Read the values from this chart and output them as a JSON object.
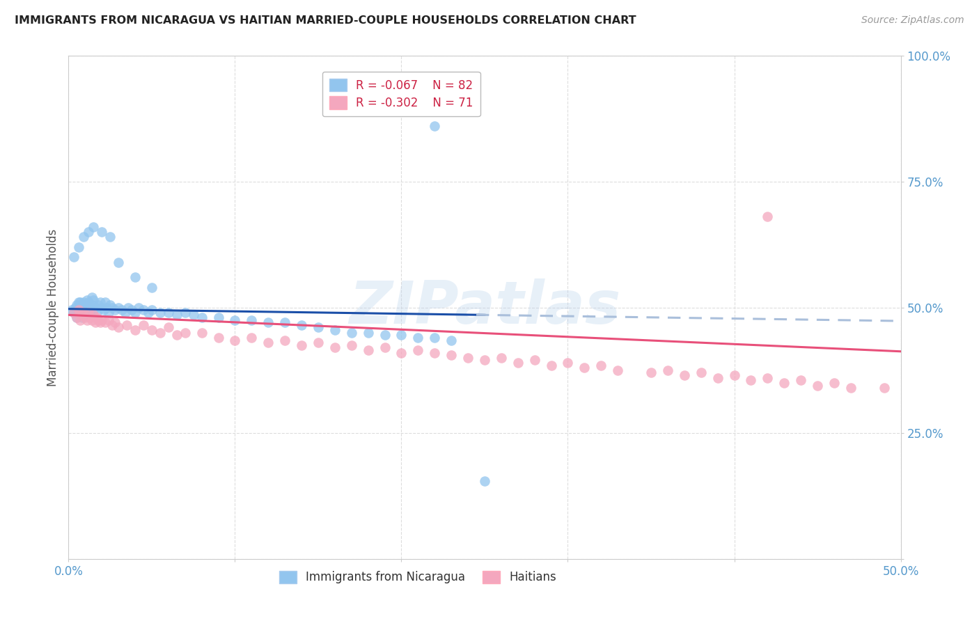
{
  "title": "IMMIGRANTS FROM NICARAGUA VS HAITIAN MARRIED-COUPLE HOUSEHOLDS CORRELATION CHART",
  "source": "Source: ZipAtlas.com",
  "ylabel": "Married-couple Households",
  "legend_blue": "R = -0.067    N = 82",
  "legend_pink": "R = -0.302    N = 71",
  "legend_blue_label": "Immigrants from Nicaragua",
  "legend_pink_label": "Haitians",
  "blue_color": "#92C5EE",
  "pink_color": "#F4A7BE",
  "blue_line_color": "#1B4FA8",
  "pink_line_color": "#E8507A",
  "dashed_line_color": "#AABFDB",
  "watermark_text": "ZIPatlas",
  "xlim": [
    0.0,
    0.5
  ],
  "ylim": [
    0.0,
    1.0
  ],
  "xtick_positions": [
    0.0,
    0.5
  ],
  "xtick_labels": [
    "0.0%",
    "50.0%"
  ],
  "ytick_positions": [
    0.0,
    0.25,
    0.5,
    0.75,
    1.0
  ],
  "ytick_labels": [
    "",
    "25.0%",
    "50.0%",
    "75.0%",
    "100.0%"
  ],
  "background_color": "#FFFFFF",
  "grid_color": "#DDDDDD",
  "blue_x": [
    0.002,
    0.003,
    0.004,
    0.005,
    0.005,
    0.006,
    0.006,
    0.007,
    0.007,
    0.007,
    0.008,
    0.008,
    0.008,
    0.009,
    0.009,
    0.01,
    0.01,
    0.011,
    0.011,
    0.012,
    0.012,
    0.013,
    0.013,
    0.014,
    0.014,
    0.015,
    0.015,
    0.016,
    0.017,
    0.018,
    0.019,
    0.02,
    0.021,
    0.022,
    0.023,
    0.024,
    0.025,
    0.026,
    0.028,
    0.03,
    0.032,
    0.034,
    0.036,
    0.038,
    0.04,
    0.042,
    0.045,
    0.048,
    0.05,
    0.055,
    0.06,
    0.065,
    0.07,
    0.075,
    0.08,
    0.09,
    0.1,
    0.11,
    0.12,
    0.13,
    0.14,
    0.15,
    0.16,
    0.17,
    0.18,
    0.19,
    0.2,
    0.21,
    0.22,
    0.23,
    0.003,
    0.006,
    0.009,
    0.012,
    0.015,
    0.02,
    0.025,
    0.03,
    0.04,
    0.05,
    0.22,
    0.25
  ],
  "blue_y": [
    0.495,
    0.49,
    0.5,
    0.505,
    0.48,
    0.495,
    0.51,
    0.5,
    0.49,
    0.51,
    0.505,
    0.495,
    0.48,
    0.51,
    0.5,
    0.505,
    0.49,
    0.5,
    0.515,
    0.495,
    0.51,
    0.5,
    0.49,
    0.505,
    0.52,
    0.495,
    0.515,
    0.5,
    0.49,
    0.505,
    0.51,
    0.5,
    0.495,
    0.51,
    0.5,
    0.49,
    0.505,
    0.5,
    0.495,
    0.5,
    0.495,
    0.49,
    0.5,
    0.495,
    0.49,
    0.5,
    0.495,
    0.49,
    0.495,
    0.49,
    0.49,
    0.485,
    0.49,
    0.485,
    0.48,
    0.48,
    0.475,
    0.475,
    0.47,
    0.47,
    0.465,
    0.46,
    0.455,
    0.45,
    0.45,
    0.445,
    0.445,
    0.44,
    0.44,
    0.435,
    0.6,
    0.62,
    0.64,
    0.65,
    0.66,
    0.65,
    0.64,
    0.59,
    0.56,
    0.54,
    0.86,
    0.155
  ],
  "pink_x": [
    0.003,
    0.005,
    0.006,
    0.007,
    0.008,
    0.009,
    0.01,
    0.011,
    0.012,
    0.013,
    0.014,
    0.015,
    0.016,
    0.017,
    0.018,
    0.019,
    0.02,
    0.022,
    0.024,
    0.026,
    0.028,
    0.03,
    0.035,
    0.04,
    0.045,
    0.05,
    0.055,
    0.06,
    0.065,
    0.07,
    0.08,
    0.09,
    0.1,
    0.11,
    0.12,
    0.13,
    0.14,
    0.15,
    0.16,
    0.17,
    0.18,
    0.19,
    0.2,
    0.21,
    0.22,
    0.23,
    0.24,
    0.25,
    0.26,
    0.27,
    0.28,
    0.29,
    0.3,
    0.31,
    0.32,
    0.33,
    0.35,
    0.36,
    0.37,
    0.38,
    0.39,
    0.4,
    0.41,
    0.42,
    0.43,
    0.44,
    0.45,
    0.46,
    0.47,
    0.49,
    0.42
  ],
  "pink_y": [
    0.49,
    0.48,
    0.495,
    0.475,
    0.485,
    0.49,
    0.48,
    0.475,
    0.49,
    0.48,
    0.475,
    0.485,
    0.47,
    0.48,
    0.475,
    0.47,
    0.475,
    0.47,
    0.475,
    0.465,
    0.47,
    0.46,
    0.465,
    0.455,
    0.465,
    0.455,
    0.45,
    0.46,
    0.445,
    0.45,
    0.45,
    0.44,
    0.435,
    0.44,
    0.43,
    0.435,
    0.425,
    0.43,
    0.42,
    0.425,
    0.415,
    0.42,
    0.41,
    0.415,
    0.41,
    0.405,
    0.4,
    0.395,
    0.4,
    0.39,
    0.395,
    0.385,
    0.39,
    0.38,
    0.385,
    0.375,
    0.37,
    0.375,
    0.365,
    0.37,
    0.36,
    0.365,
    0.355,
    0.36,
    0.35,
    0.355,
    0.345,
    0.35,
    0.34,
    0.34,
    0.68
  ]
}
